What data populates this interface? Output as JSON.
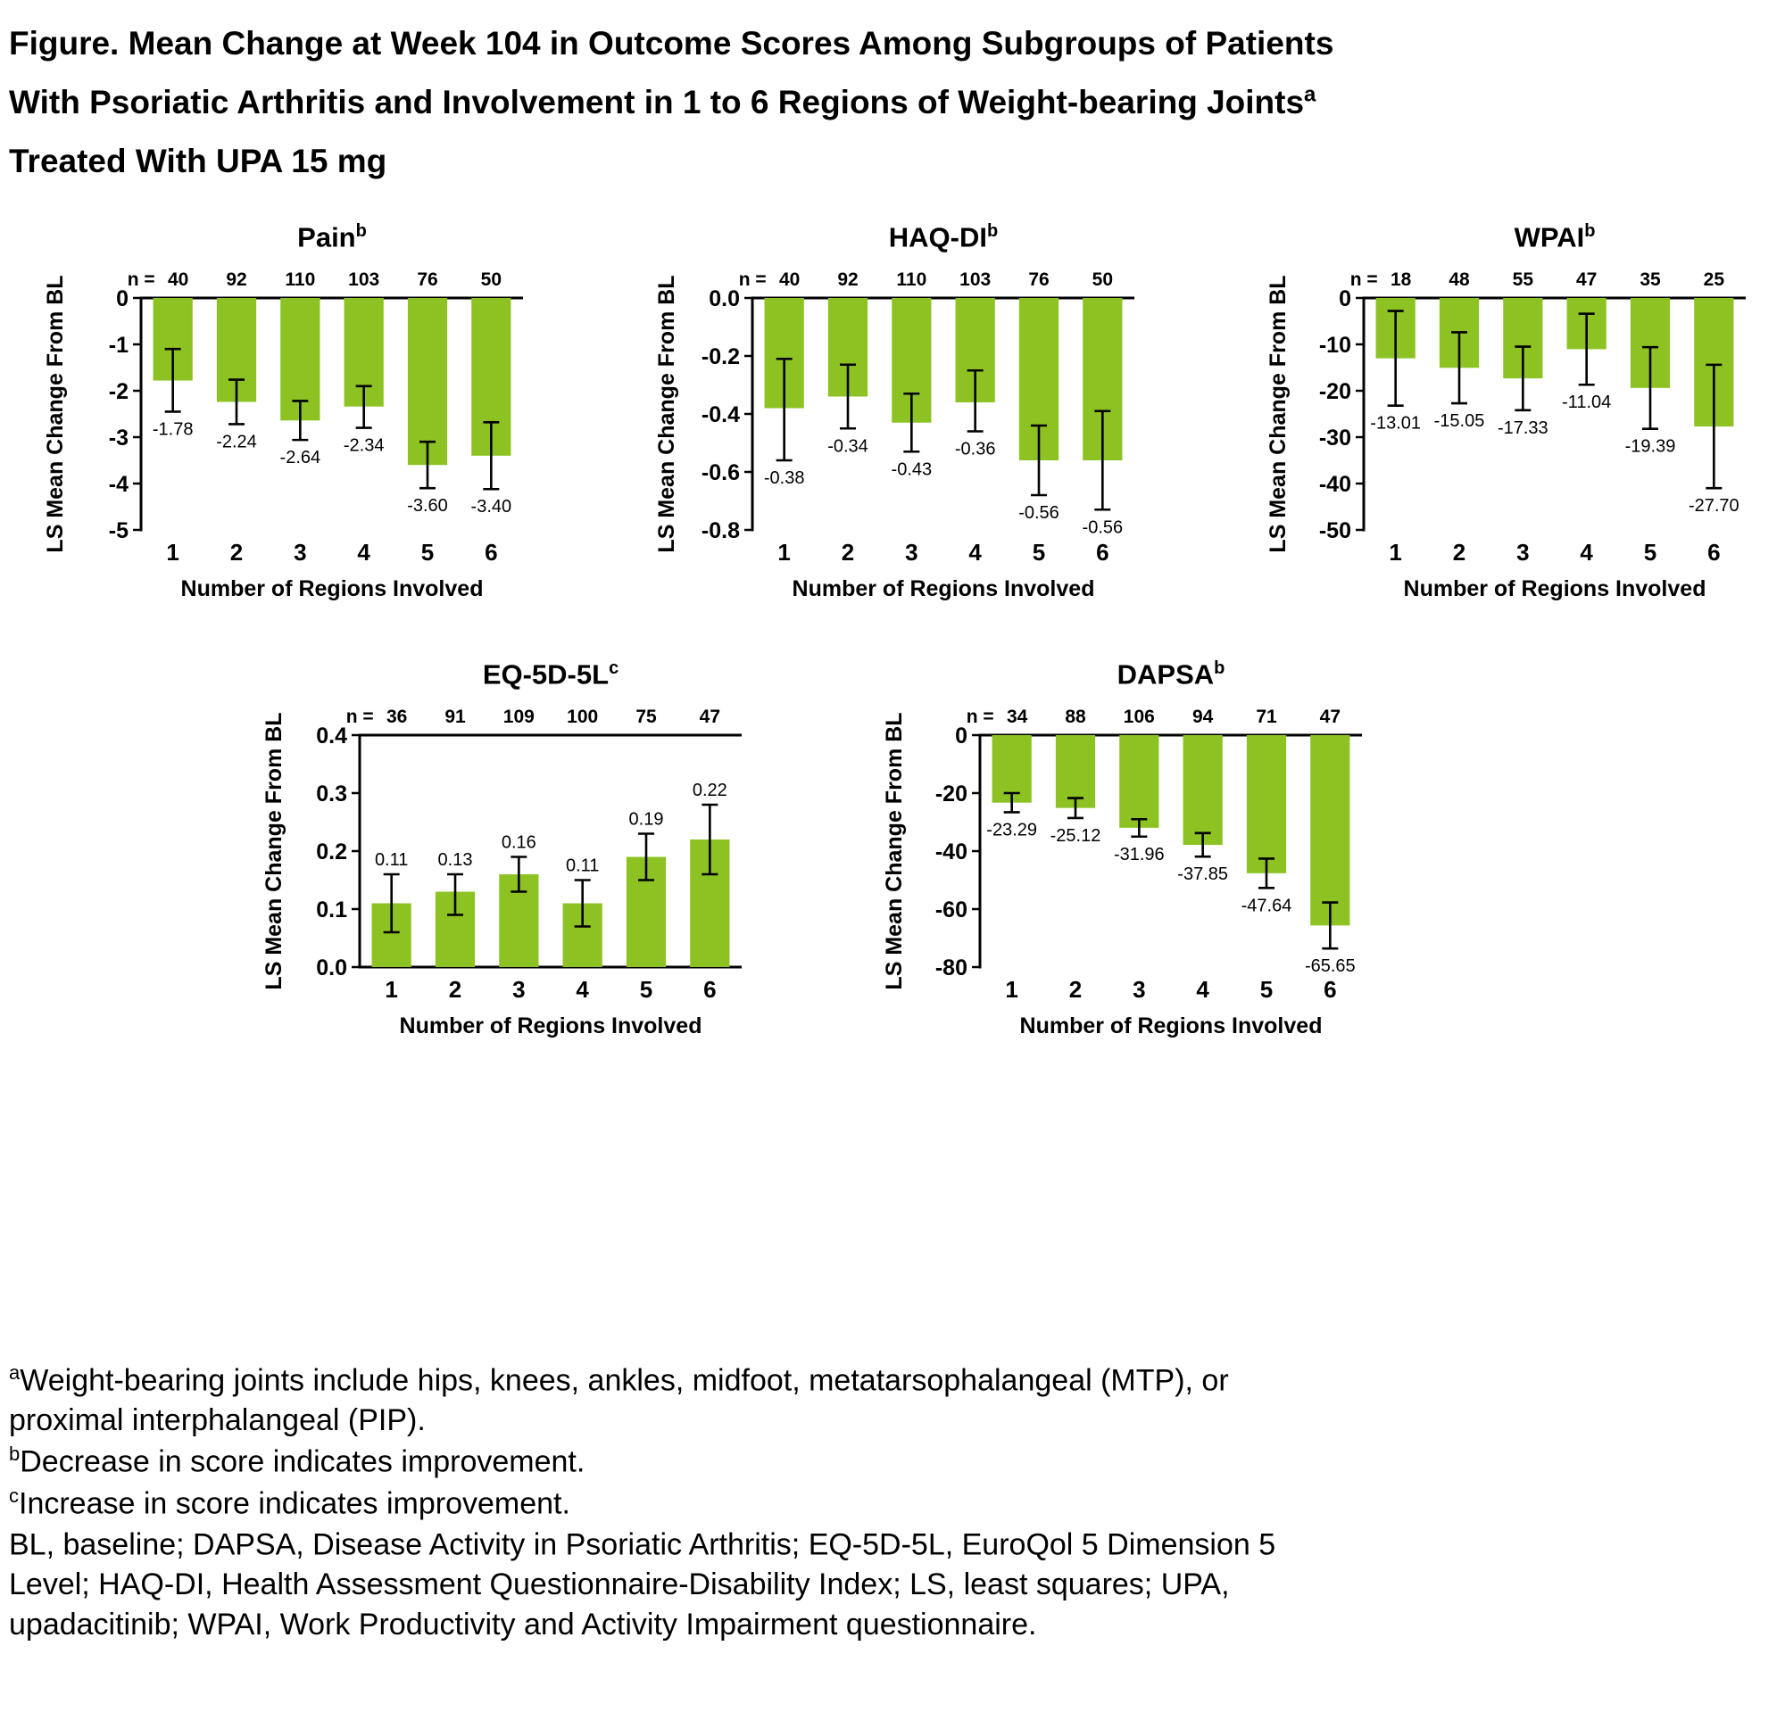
{
  "title": {
    "line1": "Figure. Mean Change at Week 104 in Outcome Scores Among Subgroups of Patients",
    "line2": "With Psoriatic Arthritis and Involvement in 1 to 6 Regions of Weight-bearing Joints",
    "line2_sup": "a",
    "line3": "Treated With UPA 15 mg"
  },
  "colors": {
    "bar": "#8CC323",
    "axis": "#000000"
  },
  "chart_data": [
    {
      "type": "bar",
      "key": "pain",
      "title": "Pain",
      "sup": "b",
      "ylabel": "LS Mean Change From BL",
      "xlabel": "Number of Regions Involved",
      "n_label": "n =",
      "n": [
        "40",
        "92",
        "110",
        "103",
        "76",
        "50"
      ],
      "categories": [
        "1",
        "2",
        "3",
        "4",
        "5",
        "6"
      ],
      "values": [
        -1.78,
        -2.24,
        -2.64,
        -2.34,
        -3.6,
        -3.4
      ],
      "value_labels": [
        "-1.78",
        "-2.24",
        "-2.64",
        "-2.34",
        "-3.60",
        "-3.40"
      ],
      "ci_low": [
        -2.45,
        -2.72,
        -3.06,
        -2.8,
        -4.1,
        -4.12
      ],
      "ci_high": [
        -1.1,
        -1.76,
        -2.22,
        -1.9,
        -3.1,
        -2.68
      ],
      "ylim": [
        -5,
        0
      ],
      "ytick_vals": [
        0,
        -1,
        -2,
        -3,
        -4,
        -5
      ],
      "ytick_labels": [
        "0",
        "-1",
        "-2",
        "-3",
        "-4",
        "-5"
      ],
      "positive": false,
      "grid": false,
      "legend": "none"
    },
    {
      "type": "bar",
      "key": "haqdi",
      "title": "HAQ-DI",
      "sup": "b",
      "ylabel": "LS Mean Change From BL",
      "xlabel": "Number of Regions Involved",
      "n_label": "n =",
      "n": [
        "40",
        "92",
        "110",
        "103",
        "76",
        "50"
      ],
      "categories": [
        "1",
        "2",
        "3",
        "4",
        "5",
        "6"
      ],
      "values": [
        -0.38,
        -0.34,
        -0.43,
        -0.36,
        -0.56,
        -0.56
      ],
      "value_labels": [
        "-0.38",
        "-0.34",
        "-0.43",
        "-0.36",
        "-0.56",
        "-0.56"
      ],
      "ci_low": [
        -0.56,
        -0.45,
        -0.53,
        -0.46,
        -0.68,
        -0.73
      ],
      "ci_high": [
        -0.21,
        -0.23,
        -0.33,
        -0.25,
        -0.44,
        -0.39
      ],
      "ylim": [
        -0.8,
        0
      ],
      "ytick_vals": [
        0,
        -0.2,
        -0.4,
        -0.6,
        -0.8
      ],
      "ytick_labels": [
        "0.0",
        "-0.2",
        "-0.4",
        "-0.6",
        "-0.8"
      ],
      "positive": false,
      "grid": false,
      "legend": "none"
    },
    {
      "type": "bar",
      "key": "wpai",
      "title": "WPAI",
      "sup": "b",
      "ylabel": "LS Mean Change From BL",
      "xlabel": "Number of Regions Involved",
      "n_label": "n =",
      "n": [
        "18",
        "48",
        "55",
        "47",
        "35",
        "25"
      ],
      "categories": [
        "1",
        "2",
        "3",
        "4",
        "5",
        "6"
      ],
      "values": [
        -13.01,
        -15.05,
        -17.33,
        -11.04,
        -19.39,
        -27.7
      ],
      "value_labels": [
        "-13.01",
        "-15.05",
        "-17.33",
        "-11.04",
        "-19.39",
        "-27.70"
      ],
      "ci_low": [
        -23.2,
        -22.7,
        -24.2,
        -18.7,
        -28.2,
        -41.0
      ],
      "ci_high": [
        -2.8,
        -7.4,
        -10.5,
        -3.4,
        -10.6,
        -14.4
      ],
      "ylim": [
        -50,
        0
      ],
      "ytick_vals": [
        0,
        -10,
        -20,
        -30,
        -40,
        -50
      ],
      "ytick_labels": [
        "0",
        "-10",
        "-20",
        "-30",
        "-40",
        "-50"
      ],
      "positive": false,
      "grid": false,
      "legend": "none"
    },
    {
      "type": "bar",
      "key": "eq5d5l",
      "title": "EQ-5D-5L",
      "sup": "c",
      "ylabel": "LS Mean Change From BL",
      "xlabel": "Number of Regions Involved",
      "n_label": "n =",
      "n": [
        "36",
        "91",
        "109",
        "100",
        "75",
        "47"
      ],
      "categories": [
        "1",
        "2",
        "3",
        "4",
        "5",
        "6"
      ],
      "values": [
        0.11,
        0.13,
        0.16,
        0.11,
        0.19,
        0.22
      ],
      "value_labels": [
        "0.11",
        "0.13",
        "0.16",
        "0.11",
        "0.19",
        "0.22"
      ],
      "ci_low": [
        0.06,
        0.09,
        0.13,
        0.07,
        0.15,
        0.16
      ],
      "ci_high": [
        0.16,
        0.16,
        0.19,
        0.15,
        0.23,
        0.28
      ],
      "ylim": [
        0,
        0.4
      ],
      "ytick_vals": [
        0.4,
        0.3,
        0.2,
        0.1,
        0
      ],
      "ytick_labels": [
        "0.4",
        "0.3",
        "0.2",
        "0.1",
        "0.0"
      ],
      "positive": true,
      "grid": false,
      "legend": "none"
    },
    {
      "type": "bar",
      "key": "dapsa",
      "title": "DAPSA",
      "sup": "b",
      "ylabel": "LS Mean Change From BL",
      "xlabel": "Number of Regions Involved",
      "n_label": "n =",
      "n": [
        "34",
        "88",
        "106",
        "94",
        "71",
        "47"
      ],
      "categories": [
        "1",
        "2",
        "3",
        "4",
        "5",
        "6"
      ],
      "values": [
        -23.29,
        -25.12,
        -31.96,
        -37.85,
        -47.64,
        -65.65
      ],
      "value_labels": [
        "-23.29",
        "-25.12",
        "-31.96",
        "-37.85",
        "-47.64",
        "-65.65"
      ],
      "ci_low": [
        -26.6,
        -28.6,
        -35.0,
        -41.9,
        -52.7,
        -73.6
      ],
      "ci_high": [
        -20.0,
        -21.7,
        -29.0,
        -33.8,
        -42.6,
        -57.7
      ],
      "ylim": [
        -80,
        0
      ],
      "ytick_vals": [
        0,
        -20,
        -40,
        -60,
        -80
      ],
      "ytick_labels": [
        "0",
        "-20",
        "-40",
        "-60",
        "-80"
      ],
      "positive": false,
      "grid": false,
      "legend": "none"
    }
  ],
  "footnotes": [
    {
      "sup": "a",
      "text": "Weight-bearing joints include hips, knees, ankles, midfoot, metatarsophalangeal (MTP), or proximal interphalangeal (PIP)."
    },
    {
      "sup": "b",
      "text": "Decrease in score indicates improvement."
    },
    {
      "sup": "c",
      "text": "Increase in score indicates improvement."
    },
    {
      "sup": "",
      "text": "BL, baseline; DAPSA, Disease Activity in Psoriatic Arthritis; EQ-5D-5L, EuroQol 5 Dimension 5 Level; HAQ-DI, Health Assessment Questionnaire-Disability Index; LS, least squares; UPA, upadacitinib; WPAI, Work Productivity and Activity Impairment questionnaire."
    }
  ]
}
